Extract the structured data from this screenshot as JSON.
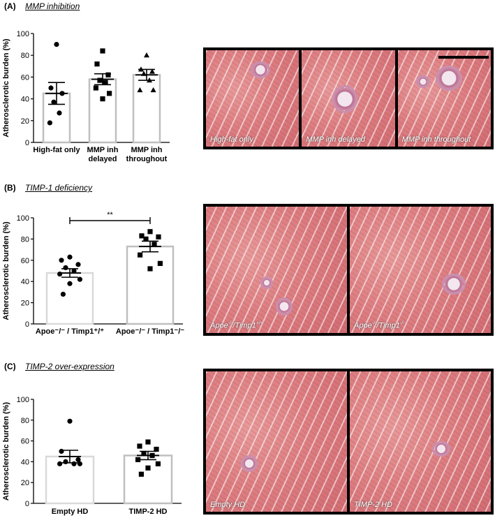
{
  "panels": [
    {
      "letter": "(A)",
      "title": "MMP inhibition",
      "chart_data": {
        "type": "bar",
        "ylabel": "Atherosclerotic burden (%)",
        "ylim": [
          0,
          100
        ],
        "yticks": [
          "0",
          "20",
          "40",
          "60",
          "80",
          "100"
        ],
        "categories": [
          {
            "lines": [
              "High-fat only"
            ]
          },
          {
            "lines": [
              "MMP inh",
              "delayed"
            ]
          },
          {
            "lines": [
              "MMP inh",
              "throughout"
            ]
          }
        ],
        "values": [
          45,
          58,
          62
        ],
        "sem": [
          10,
          5,
          5
        ],
        "points": [
          [
            90,
            50,
            45,
            37,
            27,
            18
          ],
          [
            84,
            72,
            62,
            57,
            55,
            50,
            45,
            40
          ],
          [
            80,
            67,
            65,
            63,
            57,
            48,
            48
          ]
        ],
        "markers": [
          "circle",
          "square",
          "triangle"
        ],
        "bar_colors": [
          "#bfbfbf",
          "#bfbfbf",
          "#bfbfbf"
        ],
        "significance": null
      },
      "images": [
        {
          "caption": "High-fat only",
          "sup": ""
        },
        {
          "caption": "MMP inh delayed",
          "sup": ""
        },
        {
          "caption": "MMP inh throughout",
          "sup": ""
        }
      ]
    },
    {
      "letter": "(B)",
      "title": "TIMP-1 deficiency",
      "chart_data": {
        "type": "bar",
        "ylabel": "Atherosclerotic burden (%)",
        "ylim": [
          0,
          100
        ],
        "yticks": [
          "0",
          "20",
          "40",
          "60",
          "80",
          "100"
        ],
        "categories": [
          {
            "lines": [
              "Apoe⁻/⁻ / Timp1⁺/⁺"
            ]
          },
          {
            "lines": [
              "Apoe⁻/⁻ / Timp1⁻/⁻"
            ]
          }
        ],
        "values": [
          48,
          73
        ],
        "sem": [
          4,
          5
        ],
        "points": [
          [
            63,
            60,
            56,
            53,
            50,
            47,
            42,
            38,
            28
          ],
          [
            87,
            83,
            82,
            80,
            75,
            65,
            57,
            52
          ]
        ],
        "markers": [
          "circle",
          "square"
        ],
        "bar_colors": [
          "#d9d9d9",
          "#bfbfbf"
        ],
        "significance": "**"
      },
      "images": [
        {
          "caption": "Apoe",
          "sup": "-/-",
          "caption2": "/Timp1",
          "sup2": "+/+"
        },
        {
          "caption": "Apoe",
          "sup": "-/-",
          "caption2": "/Timp1",
          "sup2": "-/-"
        }
      ]
    },
    {
      "letter": "(C)",
      "title": "TIMP-2 over-expression",
      "chart_data": {
        "type": "bar",
        "ylabel": "Atherosclerotic burden (%)",
        "ylim": [
          0,
          100
        ],
        "yticks": [
          "0",
          "20",
          "40",
          "60",
          "80",
          "100"
        ],
        "categories": [
          {
            "lines": [
              "Empty HD"
            ]
          },
          {
            "lines": [
              "TIMP-2 HD"
            ]
          }
        ],
        "values": [
          45,
          46
        ],
        "sem": [
          6,
          4
        ],
        "points": [
          [
            79,
            50,
            42,
            40,
            38,
            38,
            38
          ],
          [
            59,
            55,
            52,
            48,
            46,
            42,
            38,
            34,
            28
          ]
        ],
        "markers": [
          "circle",
          "square"
        ],
        "bar_colors": [
          "#d9d9d9",
          "#bfbfbf"
        ],
        "significance": null
      },
      "images": [
        {
          "caption": "Empty HD",
          "sup": ""
        },
        {
          "caption": "TIMP-2 HD",
          "sup": ""
        }
      ]
    }
  ]
}
